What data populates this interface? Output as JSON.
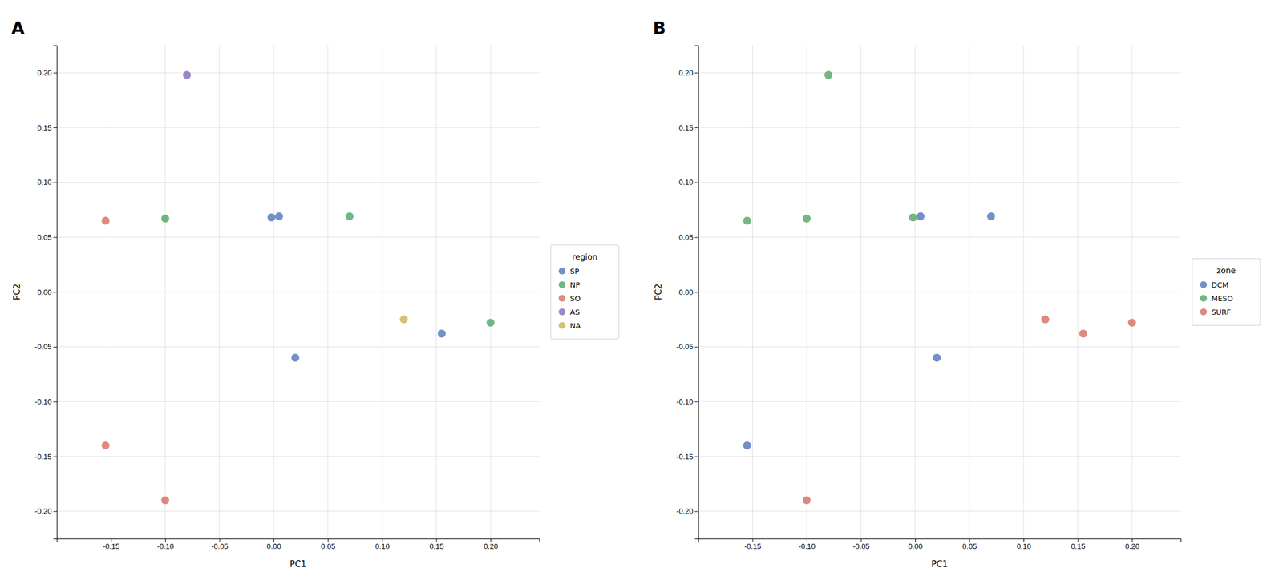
{
  "chart_data": [
    {
      "type": "scatter",
      "title": "A",
      "xlabel": "PC1",
      "ylabel": "PC2",
      "legend_title": "region",
      "legend": "right",
      "grid": true,
      "xlim": [
        -0.2,
        0.245
      ],
      "ylim": [
        -0.225,
        0.225
      ],
      "xticks": [
        -0.15,
        {
          "value": -0.1,
          "label": "-0.10"
        },
        -0.05,
        {
          "value": 0.0,
          "label": "0.00"
        },
        0.05,
        {
          "value": 0.1,
          "label": "0.10"
        },
        0.15,
        {
          "value": 0.2,
          "label": "0.20"
        }
      ],
      "yticks": [
        {
          "value": -0.2,
          "label": "-0.20"
        },
        -0.15,
        {
          "value": -0.1,
          "label": "-0.10"
        },
        -0.05,
        {
          "value": 0.0,
          "label": "0.00"
        },
        0.05,
        {
          "value": 0.1,
          "label": "0.10"
        },
        0.15,
        {
          "value": 0.2,
          "label": "0.20"
        }
      ],
      "series": [
        {
          "name": "SP",
          "color": "#5b7dbe",
          "x": [
            -0.002,
            0.005,
            0.02,
            0.155
          ],
          "values": [
            0.068,
            0.069,
            -0.06,
            -0.038
          ]
        },
        {
          "name": "NP",
          "color": "#5aaa6a",
          "x": [
            -0.1,
            0.07,
            0.2
          ],
          "values": [
            0.067,
            0.069,
            -0.028
          ]
        },
        {
          "name": "SO",
          "color": "#d9736a",
          "x": [
            -0.155,
            -0.155,
            -0.1
          ],
          "values": [
            0.065,
            -0.14,
            -0.19
          ]
        },
        {
          "name": "AS",
          "color": "#8b72be",
          "x": [
            -0.08
          ],
          "values": [
            0.198
          ]
        },
        {
          "name": "NA",
          "color": "#c9b85a",
          "x": [
            0.12
          ],
          "values": [
            -0.025
          ]
        }
      ]
    },
    {
      "type": "scatter",
      "title": "B",
      "xlabel": "PC1",
      "ylabel": "PC2",
      "legend_title": "zone",
      "legend": "right",
      "grid": true,
      "xlim": [
        -0.2,
        0.245
      ],
      "ylim": [
        -0.225,
        0.225
      ],
      "xticks": [
        -0.15,
        {
          "value": -0.1,
          "label": "-0.10"
        },
        -0.05,
        {
          "value": 0.0,
          "label": "0.00"
        },
        0.05,
        {
          "value": 0.1,
          "label": "0.10"
        },
        0.15,
        {
          "value": 0.2,
          "label": "0.20"
        }
      ],
      "yticks": [
        {
          "value": -0.2,
          "label": "-0.20"
        },
        -0.15,
        {
          "value": -0.1,
          "label": "-0.10"
        },
        -0.05,
        {
          "value": 0.0,
          "label": "0.00"
        },
        0.05,
        {
          "value": 0.1,
          "label": "0.10"
        },
        0.15,
        {
          "value": 0.2,
          "label": "0.20"
        }
      ],
      "series": [
        {
          "name": "DCM",
          "color": "#5b7dbe",
          "x": [
            0.07,
            0.005,
            0.02,
            -0.155
          ],
          "values": [
            0.069,
            0.069,
            -0.06,
            -0.14
          ]
        },
        {
          "name": "MESO",
          "color": "#5aaa6a",
          "x": [
            -0.08,
            -0.155,
            -0.1,
            -0.002
          ],
          "values": [
            0.198,
            0.065,
            0.067,
            0.068
          ]
        },
        {
          "name": "SURF",
          "color": "#d9736a",
          "x": [
            0.155,
            0.12,
            0.2,
            -0.1
          ],
          "values": [
            -0.038,
            -0.025,
            -0.028,
            -0.19
          ]
        }
      ]
    }
  ]
}
